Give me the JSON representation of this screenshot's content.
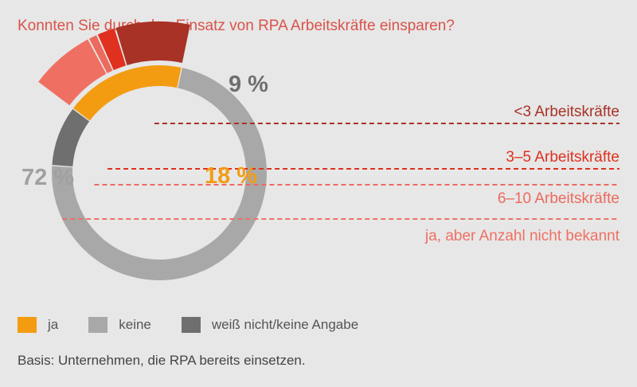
{
  "chart_data": {
    "type": "pie",
    "title": "Konnten Sie durch den Einsatz von RPA Arbeitskräfte einsparen?",
    "slices": [
      {
        "name": "keine",
        "value": 72,
        "label": "72 %",
        "color": "#a8a8a8"
      },
      {
        "name": "weiß nicht/keine Angabe",
        "value": 9,
        "label": "9 %",
        "color": "#6f6f6f"
      },
      {
        "name": "ja",
        "value": 18,
        "label": "18 %",
        "color": "#f39c12"
      }
    ],
    "breakdown": {
      "parent": "ja",
      "segments": [
        {
          "label": "<3 Arbeitskräfte",
          "value": 8,
          "color": "#a93226"
        },
        {
          "label": "3–5 Arbeitskräfte",
          "value": 2,
          "color": "#e0301e"
        },
        {
          "label": "6–10 Arbeitskräfte",
          "value": 1,
          "color": "#ec6a5e"
        },
        {
          "label": "ja, aber Anzahl nicht bekannt",
          "value": 7,
          "color": "#ef7063"
        }
      ]
    },
    "legend": [
      {
        "label": "ja",
        "color": "#f39c12"
      },
      {
        "label": "keine",
        "color": "#a8a8a8"
      },
      {
        "label": "weiß nicht/keine Angabe",
        "color": "#6f6f6f"
      }
    ],
    "legend_position": "bottom-left"
  },
  "footnote": "Basis: Unternehmen, die RPA bereits einsetzen."
}
